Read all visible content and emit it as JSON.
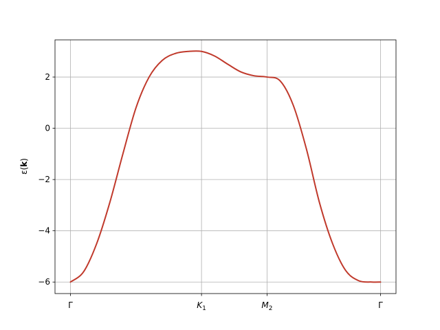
{
  "chart_data": {
    "type": "line",
    "title": "",
    "xlabel": "",
    "ylabel": "ε(k)",
    "ylabel_parts": {
      "main": "ε(",
      "bold": "k",
      "end": ")"
    },
    "grid": true,
    "legend": "none",
    "x_ticks": [
      {
        "pos": 0.0,
        "label": "Γ",
        "sub": ""
      },
      {
        "pos": 1.0,
        "label": "K",
        "sub": "1"
      },
      {
        "pos": 1.5,
        "label": "M",
        "sub": "2"
      },
      {
        "pos": 2.366,
        "label": "Γ",
        "sub": ""
      }
    ],
    "xlim": [
      -0.118,
      2.484
    ],
    "ylim": [
      -6.45,
      3.45
    ],
    "y_ticks": [
      -6,
      -4,
      -2,
      0,
      2
    ],
    "y_tick_labels": [
      "−6",
      "−4",
      "−2",
      "0",
      "2"
    ],
    "series": [
      {
        "color": "#c0392b",
        "x": [
          0,
          0.1,
          0.2,
          0.3,
          0.4,
          0.5,
          0.6,
          0.7,
          0.8,
          0.9,
          1.0,
          1.1,
          1.2,
          1.3,
          1.4,
          1.5,
          1.6,
          1.7,
          1.8,
          1.9,
          2.0,
          2.1,
          2.2,
          2.3,
          2.366
        ],
        "y": [
          -6.0,
          -5.6,
          -4.5,
          -2.9,
          -1.0,
          0.8,
          2.0,
          2.65,
          2.92,
          3.0,
          3.0,
          2.82,
          2.5,
          2.2,
          2.05,
          2.0,
          1.85,
          0.9,
          -0.8,
          -2.9,
          -4.5,
          -5.55,
          -5.95,
          -6.0,
          -6.0
        ]
      }
    ]
  }
}
